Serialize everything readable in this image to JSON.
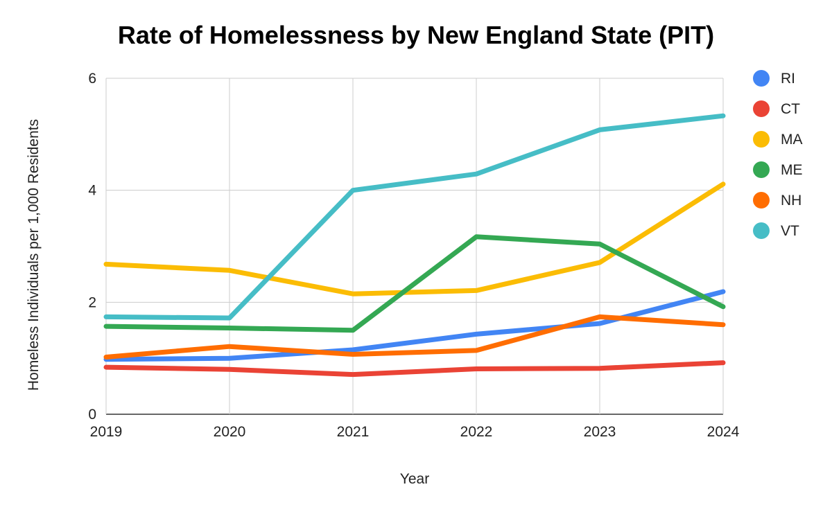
{
  "chart_data": {
    "type": "line",
    "title": "Rate of Homelessness by New England State (PIT)",
    "xlabel": "Year",
    "ylabel": "Homeless Individuals per 1,000 Residents",
    "x": [
      "2019",
      "2020",
      "2021",
      "2022",
      "2023",
      "2024"
    ],
    "ylim": [
      0,
      6
    ],
    "yticks": [
      0,
      2,
      4,
      6
    ],
    "grid": true,
    "legend_position": "right",
    "series": [
      {
        "name": "RI",
        "color": "#4285F4",
        "values": [
          0.98,
          1.0,
          1.15,
          1.43,
          1.62,
          2.19
        ]
      },
      {
        "name": "CT",
        "color": "#EA4335",
        "values": [
          0.84,
          0.8,
          0.71,
          0.81,
          0.82,
          0.92
        ]
      },
      {
        "name": "MA",
        "color": "#FBBC04",
        "values": [
          2.68,
          2.57,
          2.15,
          2.21,
          2.71,
          4.11
        ]
      },
      {
        "name": "ME",
        "color": "#34A853",
        "values": [
          1.57,
          1.54,
          1.5,
          3.17,
          3.04,
          1.92
        ]
      },
      {
        "name": "NH",
        "color": "#FF6D01",
        "values": [
          1.02,
          1.21,
          1.07,
          1.14,
          1.74,
          1.6
        ]
      },
      {
        "name": "VT",
        "color": "#46BDC6",
        "values": [
          1.74,
          1.72,
          4.0,
          4.29,
          5.08,
          5.33
        ]
      }
    ]
  }
}
